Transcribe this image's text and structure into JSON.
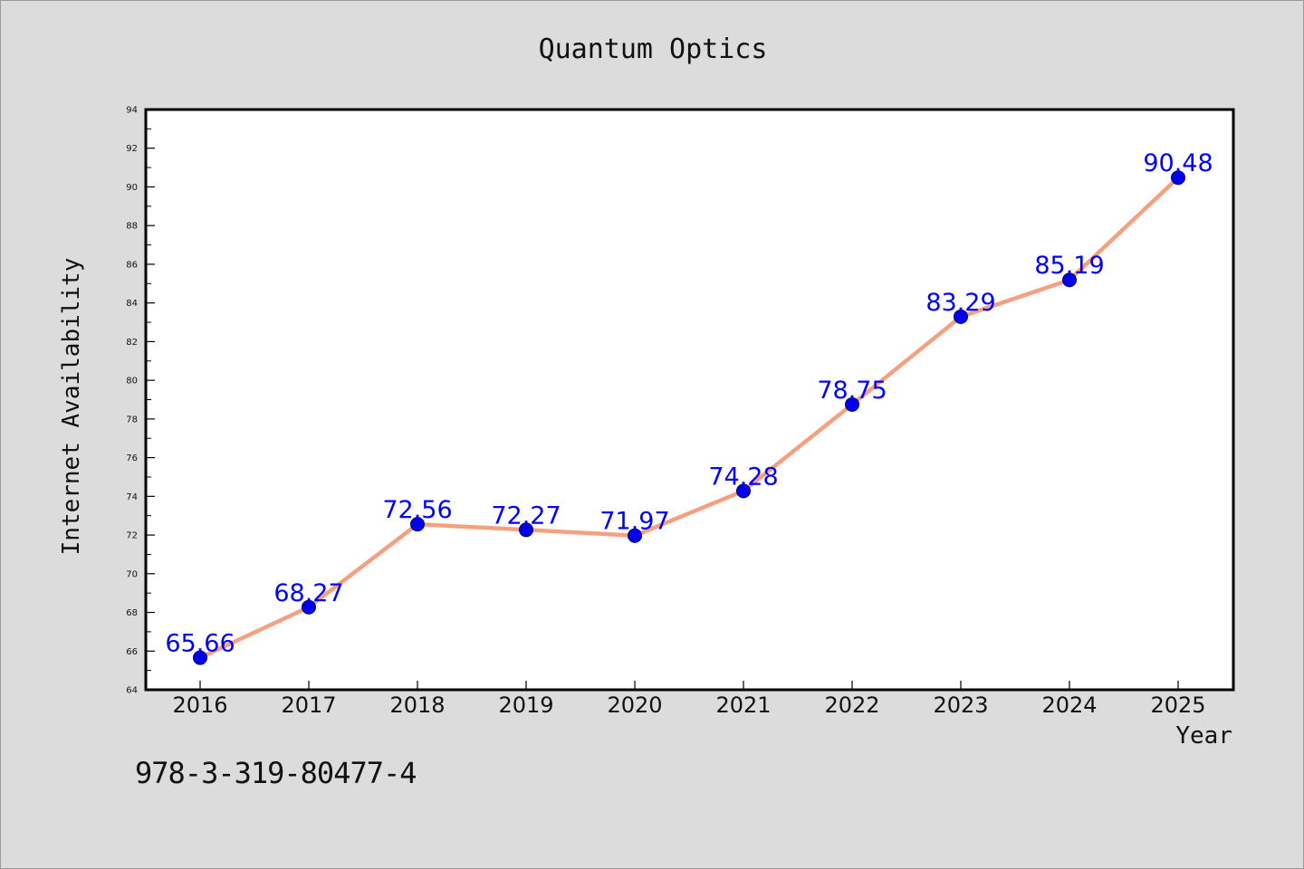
{
  "chart_data": {
    "type": "line",
    "title": "Quantum Optics",
    "xlabel": "Year",
    "ylabel": "Internet Availability",
    "categories": [
      "2016",
      "2017",
      "2018",
      "2019",
      "2020",
      "2021",
      "2022",
      "2023",
      "2024",
      "2025"
    ],
    "series": [
      {
        "values": [
          65.66,
          68.27,
          72.56,
          72.27,
          71.97,
          74.28,
          78.75,
          83.29,
          85.19,
          90.48
        ]
      }
    ],
    "data_labels": [
      "65.66",
      "68.27",
      "72.56",
      "72.27",
      "71.97",
      "74.28",
      "78.75",
      "83.29",
      "85.19",
      "90.48"
    ],
    "ylim": [
      64,
      94
    ],
    "yticks": [
      64,
      66,
      68,
      70,
      72,
      74,
      76,
      78,
      80,
      82,
      84,
      86,
      88,
      90,
      92,
      94
    ],
    "grid": false,
    "legend": "none",
    "colors": {
      "line": "#f5a080",
      "marker": "#0000ee",
      "marker_edge": "#000060",
      "data_label": "#0000ff",
      "plot_background": "#ffffff",
      "figure_background": "#dcdcdc"
    }
  },
  "footer": {
    "code": "978-3-319-80477-4"
  }
}
